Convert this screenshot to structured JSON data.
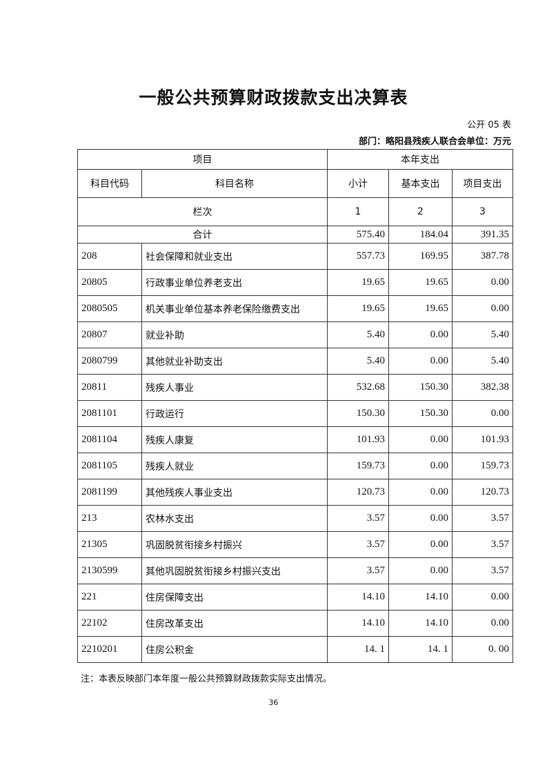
{
  "title": "一般公共预算财政拨款支出决算表",
  "form_no": "公开 05 表",
  "dept_unit": "部门：略阳县残疾人联合会单位：万元",
  "headers": {
    "item": "项目",
    "this_year": "本年支出",
    "code": "科目代码",
    "name": "科目名称",
    "subtotal": "小计",
    "basic": "基本支出",
    "project": "项目支出",
    "col_index_label": "栏次",
    "col1": "1",
    "col2": "2",
    "col3": "3"
  },
  "total": {
    "label": "合计",
    "subtotal": "575.40",
    "basic": "184.04",
    "project": "391.35"
  },
  "rows": [
    {
      "code": "208",
      "name": "社会保障和就业支出",
      "subtotal": "557.73",
      "basic": "169.95",
      "project": "387.78"
    },
    {
      "code": "20805",
      "name": "行政事业单位养老支出",
      "subtotal": "19.65",
      "basic": "19.65",
      "project": "0.00"
    },
    {
      "code": "2080505",
      "name": "机关事业单位基本养老保险缴费支出",
      "subtotal": "19.65",
      "basic": "19.65",
      "project": "0.00"
    },
    {
      "code": "20807",
      "name": "就业补助",
      "subtotal": "5.40",
      "basic": "0.00",
      "project": "5.40"
    },
    {
      "code": "2080799",
      "name": "其他就业补助支出",
      "subtotal": "5.40",
      "basic": "0.00",
      "project": "5.40"
    },
    {
      "code": "20811",
      "name": "残疾人事业",
      "subtotal": "532.68",
      "basic": "150.30",
      "project": "382.38"
    },
    {
      "code": "2081101",
      "name": "行政运行",
      "subtotal": "150.30",
      "basic": "150.30",
      "project": "0.00"
    },
    {
      "code": "2081104",
      "name": "残疾人康复",
      "subtotal": "101.93",
      "basic": "0.00",
      "project": "101.93"
    },
    {
      "code": "2081105",
      "name": "残疾人就业",
      "subtotal": "159.73",
      "basic": "0.00",
      "project": "159.73"
    },
    {
      "code": "2081199",
      "name": "其他残疾人事业支出",
      "subtotal": "120.73",
      "basic": "0.00",
      "project": "120.73"
    },
    {
      "code": "213",
      "name": "农林水支出",
      "subtotal": "3.57",
      "basic": "0.00",
      "project": "3.57"
    },
    {
      "code": "21305",
      "name": "巩固脱贫衔接乡村振兴",
      "subtotal": "3.57",
      "basic": "0.00",
      "project": "3.57"
    },
    {
      "code": "2130599",
      "name": "其他巩固脱贫衔接乡村振兴支出",
      "subtotal": "3.57",
      "basic": "0.00",
      "project": "3.57"
    },
    {
      "code": "221",
      "name": "住房保障支出",
      "subtotal": "14.10",
      "basic": "14.10",
      "project": "0.00"
    },
    {
      "code": "22102",
      "name": "住房改革支出",
      "subtotal": "14.10",
      "basic": "14.10",
      "project": "0.00"
    },
    {
      "code": "2210201",
      "name": "住房公积金",
      "subtotal": "14. 1",
      "basic": "14. 1",
      "project": "0. 00"
    }
  ],
  "note": "注：本表反映部门本年度一般公共预算财政拨款实际支出情况。",
  "page_number": "36"
}
